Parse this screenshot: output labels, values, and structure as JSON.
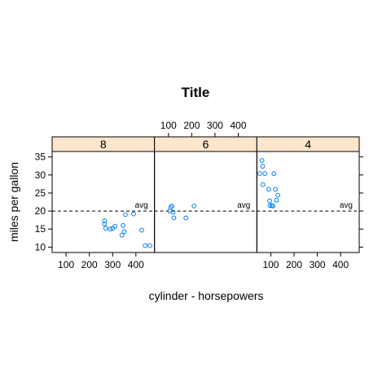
{
  "chart_data": {
    "type": "scatter",
    "title": "Title",
    "xlabel": "cylinder - horsepowers",
    "ylabel": "miles per gallon",
    "xlim": [
      40,
      480
    ],
    "ylim": [
      8.5,
      36.5
    ],
    "x_ticks": [
      100,
      200,
      300,
      400
    ],
    "y_ticks": [
      10,
      15,
      20,
      25,
      30,
      35
    ],
    "grid": false,
    "reference_line": {
      "y": 20,
      "style": "dashed",
      "label": "avg"
    },
    "point_color": "#0080ff",
    "strip_color": "#ffe5cc",
    "panels": [
      {
        "label": "8",
        "points": [
          {
            "x": 265,
            "y": 17.3
          },
          {
            "x": 265,
            "y": 16.4
          },
          {
            "x": 270,
            "y": 15.2
          },
          {
            "x": 290,
            "y": 15.0
          },
          {
            "x": 300,
            "y": 15.2
          },
          {
            "x": 310,
            "y": 15.8
          },
          {
            "x": 340,
            "y": 13.3
          },
          {
            "x": 345,
            "y": 16.0
          },
          {
            "x": 350,
            "y": 14.3
          },
          {
            "x": 355,
            "y": 19.0
          },
          {
            "x": 390,
            "y": 19.2
          },
          {
            "x": 425,
            "y": 14.7
          },
          {
            "x": 440,
            "y": 10.4
          },
          {
            "x": 460,
            "y": 10.4
          }
        ]
      },
      {
        "label": "6",
        "points": [
          {
            "x": 105,
            "y": 20.0
          },
          {
            "x": 110,
            "y": 21.0
          },
          {
            "x": 115,
            "y": 21.4
          },
          {
            "x": 120,
            "y": 19.7
          },
          {
            "x": 123,
            "y": 18.1
          },
          {
            "x": 175,
            "y": 18.1
          },
          {
            "x": 210,
            "y": 21.4
          }
        ]
      },
      {
        "label": "4",
        "points": [
          {
            "x": 52,
            "y": 30.4
          },
          {
            "x": 62,
            "y": 34.0
          },
          {
            "x": 65,
            "y": 32.4
          },
          {
            "x": 66,
            "y": 27.3
          },
          {
            "x": 75,
            "y": 30.4
          },
          {
            "x": 91,
            "y": 26.0
          },
          {
            "x": 95,
            "y": 22.8
          },
          {
            "x": 97,
            "y": 21.5
          },
          {
            "x": 105,
            "y": 21.5
          },
          {
            "x": 109,
            "y": 21.4
          },
          {
            "x": 113,
            "y": 30.4
          },
          {
            "x": 120,
            "y": 26.0
          },
          {
            "x": 124,
            "y": 23.0
          },
          {
            "x": 130,
            "y": 24.4
          }
        ]
      }
    ]
  }
}
